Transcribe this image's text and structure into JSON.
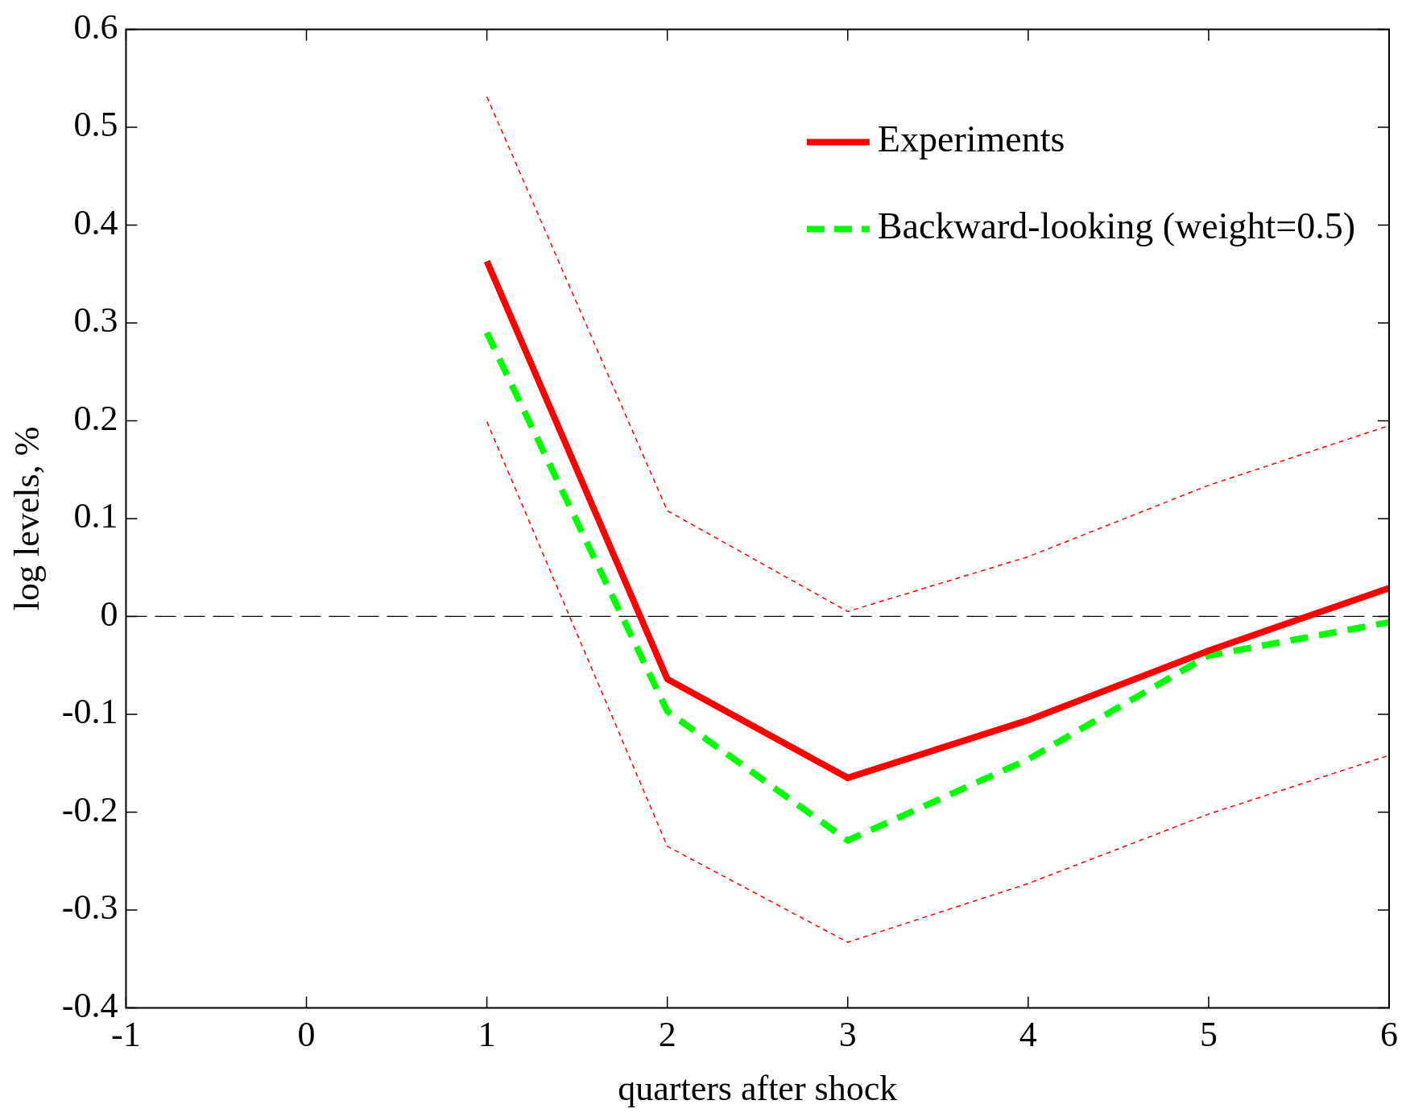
{
  "chart_data": {
    "type": "line",
    "xlabel": "quarters after shock",
    "ylabel": "log levels, %",
    "x": [
      1,
      2,
      3,
      4,
      5,
      6
    ],
    "series": [
      {
        "name": "Experiments",
        "color": "#ff0000",
        "line_style": "solid",
        "values": [
          0.363,
          -0.064,
          -0.165,
          -0.106,
          -0.035,
          0.029
        ]
      },
      {
        "name": "Backward-looking (weight=0.5)",
        "color": "#00ff00",
        "line_style": "dashed",
        "values": [
          0.29,
          -0.097,
          -0.229,
          -0.146,
          -0.04,
          -0.006
        ]
      },
      {
        "color": "#ff0000",
        "line_style": "dotted",
        "values": [
          0.531,
          0.108,
          0.005,
          0.061,
          0.134,
          0.195
        ]
      },
      {
        "color": "#ff0000",
        "line_style": "dotted",
        "values": [
          0.199,
          -0.235,
          -0.333,
          -0.273,
          -0.202,
          -0.142
        ]
      }
    ],
    "xlim": [
      -1,
      6
    ],
    "xticks": [
      -1,
      0,
      1,
      2,
      3,
      4,
      5,
      6
    ],
    "ylim": [
      -0.4,
      0.6
    ],
    "yticks": [
      -0.4,
      -0.3,
      -0.2,
      -0.1,
      0,
      0.1,
      0.2,
      0.3,
      0.4,
      0.5,
      0.6
    ],
    "ref_lines": [
      {
        "axis": "y",
        "value": 0,
        "color": "#000000",
        "line_style": "dashed"
      }
    ],
    "grid": false,
    "legend": "top right",
    "marker": "none"
  }
}
